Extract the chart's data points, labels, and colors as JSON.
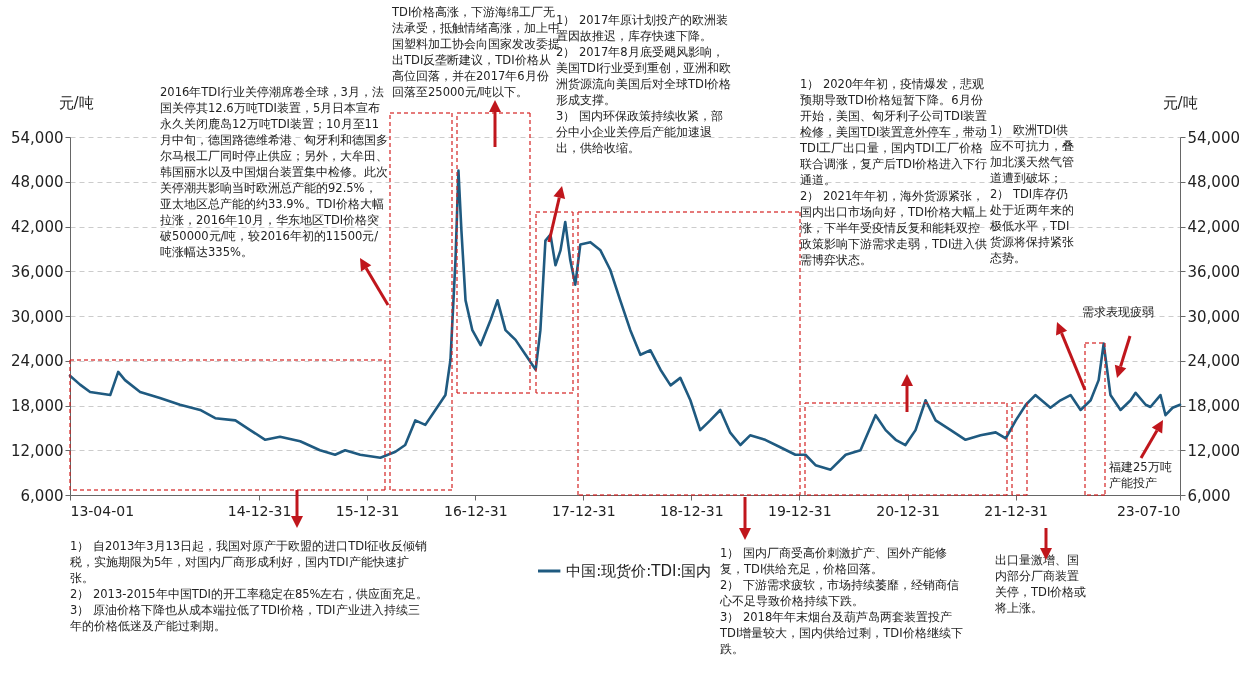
{
  "chart_data": {
    "type": "line",
    "ylabel": "元/吨",
    "y2label": "元/吨",
    "xlim": [
      "2013-04-01",
      "2023-07-10"
    ],
    "xticks": [
      {
        "value": "2013-04-01",
        "label": "13-04-01"
      },
      {
        "value": "2014-12-31",
        "label": "14-12-31"
      },
      {
        "value": "2015-12-31",
        "label": "15-12-31"
      },
      {
        "value": "2016-12-31",
        "label": "16-12-31"
      },
      {
        "value": "2017-12-31",
        "label": "17-12-31"
      },
      {
        "value": "2018-12-31",
        "label": "18-12-31"
      },
      {
        "value": "2019-12-31",
        "label": "19-12-31"
      },
      {
        "value": "2020-12-31",
        "label": "20-12-31"
      },
      {
        "value": "2021-12-31",
        "label": "21-12-31"
      },
      {
        "value": "2023-07-10",
        "label": "23-07-10"
      }
    ],
    "ylim": [
      6000,
      54000
    ],
    "yticks": [
      {
        "value": 6000,
        "label": "6,000"
      },
      {
        "value": 12000,
        "label": "12,000"
      },
      {
        "value": 18000,
        "label": "18,000"
      },
      {
        "value": 24000,
        "label": "24,000"
      },
      {
        "value": 30000,
        "label": "30,000"
      },
      {
        "value": 36000,
        "label": "36,000"
      },
      {
        "value": 42000,
        "label": "42,000"
      },
      {
        "value": 48000,
        "label": "48,000"
      },
      {
        "value": 54000,
        "label": "54,000"
      }
    ],
    "y2lim": [
      6000,
      54000
    ],
    "y2ticks": [
      {
        "value": 6000,
        "label": "6,000"
      },
      {
        "value": 12000,
        "label": "12,000"
      },
      {
        "value": 18000,
        "label": "18,000"
      },
      {
        "value": 24000,
        "label": "24,000"
      },
      {
        "value": 30000,
        "label": "30,000"
      },
      {
        "value": 36000,
        "label": "36,000"
      },
      {
        "value": 42000,
        "label": "42,000"
      },
      {
        "value": 48000,
        "label": "48,000"
      },
      {
        "value": 54000,
        "label": "54,000"
      }
    ],
    "grid": "y",
    "legend": "bottom",
    "x": [
      "2013-04-01",
      "2013-05-05",
      "2013-06-08",
      "2013-08-15",
      "2013-09-11",
      "2013-10-04",
      "2013-11-24",
      "2014-01-30",
      "2014-04-08",
      "2014-06-15",
      "2014-08-05",
      "2014-10-12",
      "2014-12-01",
      "2015-01-21",
      "2015-03-12",
      "2015-05-19",
      "2015-07-25",
      "2015-09-14",
      "2015-10-18",
      "2015-12-08",
      "2016-02-14",
      "2016-04-05",
      "2016-05-08",
      "2016-06-11",
      "2016-07-15",
      "2016-08-18",
      "2016-09-21",
      "2016-10-08",
      "2016-10-25",
      "2016-11-04",
      "2016-11-14",
      "2016-11-28",
      "2016-12-21",
      "2017-01-18",
      "2017-02-21",
      "2017-03-16",
      "2017-04-12",
      "2017-05-16",
      "2017-06-19",
      "2017-07-23",
      "2017-08-08",
      "2017-08-25",
      "2017-09-11",
      "2017-09-28",
      "2017-10-15",
      "2017-10-31",
      "2017-11-17",
      "2017-12-04",
      "2017-12-21",
      "2018-01-24",
      "2018-02-27",
      "2018-04-01",
      "2018-05-05",
      "2018-06-08",
      "2018-07-12",
      "2018-08-15",
      "2018-09-18",
      "2018-10-22",
      "2018-11-24",
      "2018-12-28",
      "2019-01-30",
      "2019-03-05",
      "2019-04-08",
      "2019-05-11",
      "2019-06-15",
      "2019-07-18",
      "2019-09-07",
      "2019-10-28",
      "2019-12-18",
      "2020-01-21",
      "2020-02-24",
      "2020-04-15",
      "2020-06-05",
      "2020-07-25",
      "2020-09-14",
      "2020-10-18",
      "2020-11-21",
      "2020-12-24",
      "2021-01-27",
      "2021-03-02",
      "2021-04-05",
      "2021-05-26",
      "2021-07-15",
      "2021-09-04",
      "2021-10-25",
      "2021-11-28",
      "2022-01-01",
      "2022-02-04",
      "2022-03-08",
      "2022-04-28",
      "2022-06-01",
      "2022-07-05",
      "2022-08-08",
      "2022-09-11",
      "2022-10-08",
      "2022-10-25",
      "2022-11-17",
      "2022-12-21",
      "2023-01-24",
      "2023-02-10",
      "2023-03-16",
      "2023-04-01",
      "2023-05-05",
      "2023-05-22",
      "2023-06-15",
      "2023-07-10"
    ],
    "series": [
      {
        "name": "中国:现货价:TDI:国内",
        "color": "#1f5a80",
        "values": [
          22000,
          20800,
          19800,
          19400,
          22500,
          21400,
          19800,
          19000,
          18100,
          17400,
          16300,
          16000,
          14700,
          13400,
          13800,
          13200,
          12000,
          11400,
          12000,
          11400,
          11000,
          11800,
          12700,
          16000,
          15400,
          17400,
          19400,
          24100,
          37500,
          49500,
          41500,
          32100,
          28100,
          26100,
          29500,
          32100,
          28100,
          26800,
          24800,
          22800,
          28100,
          40100,
          40900,
          36800,
          38800,
          42600,
          37500,
          34200,
          39600,
          39900,
          38800,
          36200,
          32100,
          28100,
          24800,
          25400,
          22800,
          20700,
          21700,
          18700,
          14700,
          16000,
          17400,
          14400,
          12700,
          14000,
          13400,
          12400,
          11400,
          11400,
          10000,
          9400,
          11400,
          12000,
          16700,
          14700,
          13400,
          12700,
          14700,
          18700,
          16000,
          14700,
          13400,
          14000,
          14400,
          13600,
          16000,
          18100,
          19400,
          17700,
          18700,
          19400,
          17400,
          18700,
          21400,
          26300,
          19400,
          17400,
          18700,
          19700,
          18100,
          17800,
          19400,
          16700,
          17700,
          18100
        ]
      }
    ],
    "annotations": [
      "2016年TDI行业关停潮席卷全球，3月，法国关停其12.6万吨TDI装置，5月日本宣布永久关闭鹿岛12万吨TDI装置；10月至11月中旬，德国路德维希港、匈牙利和德国多尔马根工厂同时停止供应；另外，大牟田、韩国丽水以及中国烟台装置集中检修。此次关停潮共影响当时欧洲总产能的92.5%，亚太地区总产能的约33.9%。TDI价格大幅拉涨，2016年10月，华东地区TDI价格突破50000元/吨，较2016年初的11500元/吨涨幅达335%。",
      "TDI价格高涨，下游海绵工厂无法承受，抵触情绪高涨，加上中国塑料加工协会向国家发改委提出TDI反垄断建议，TDI价格从高位回落，并在2017年6月份回落至25000元/吨以下。",
      "1） 2017年原计划投产的欧洲装置因故推迟，库存快速下降。\n2） 2017年8月底受飓风影响，美国TDI行业受到重创，亚洲和欧洲货源流向美国后对全球TDI价格形成支撑。\n3） 国内环保政策持续收紧，部分中小企业关停后产能加速退出，供给收缩。",
      "1） 2020年年初，疫情爆发，悲观预期导致TDI价格短暂下降。6月份开始，美国、匈牙利子公司TDI装置检修，美国TDI装置意外停车，带动TDI工厂出口量，国内TDI工厂价格联合调涨，复产后TDI价格进入下行通道。\n2） 2021年年初，海外货源紧张，国内出口市场向好，TDI价格大幅上涨，下半年受疫情反复和能耗双控政策影响下游需求走弱，TDI进入供需博弈状态。",
      "1） 欧洲TDI供应不可抗力，叠加北溪天然气管道遭到破坏；\n2） TDI库存仍处于近两年来的极低水平，TDI货源将保持紧张态势。",
      "需求表现疲弱",
      "福建25万吨产能投产",
      "1） 自2013年3月13日起，我国对原产于欧盟的进口TDI征收反倾销税，实施期限为5年，对国内厂商形成利好，国内TDI产能快速扩张。\n2） 2013-2015年中国TDI的开工率稳定在85%左右，供应面充足。\n3） 原油价格下降也从成本端拉低了TDI价格，TDI产业进入持续三年的价格低迷及产能过剩期。",
      "1） 国内厂商受高价刺激扩产、国外产能修复，TDI供给充足，价格回落。\n2） 下游需求疲软，市场持续萎靡，经销商信心不足导致价格持续下跌。\n3） 2018年年末烟台及葫芦岛两套装置投产TDI增量较大，国内供给过剩，TDI价格继续下跌。",
      "出口量激增、国内部分厂商装置关停，TDI价格或将上涨。"
    ]
  }
}
